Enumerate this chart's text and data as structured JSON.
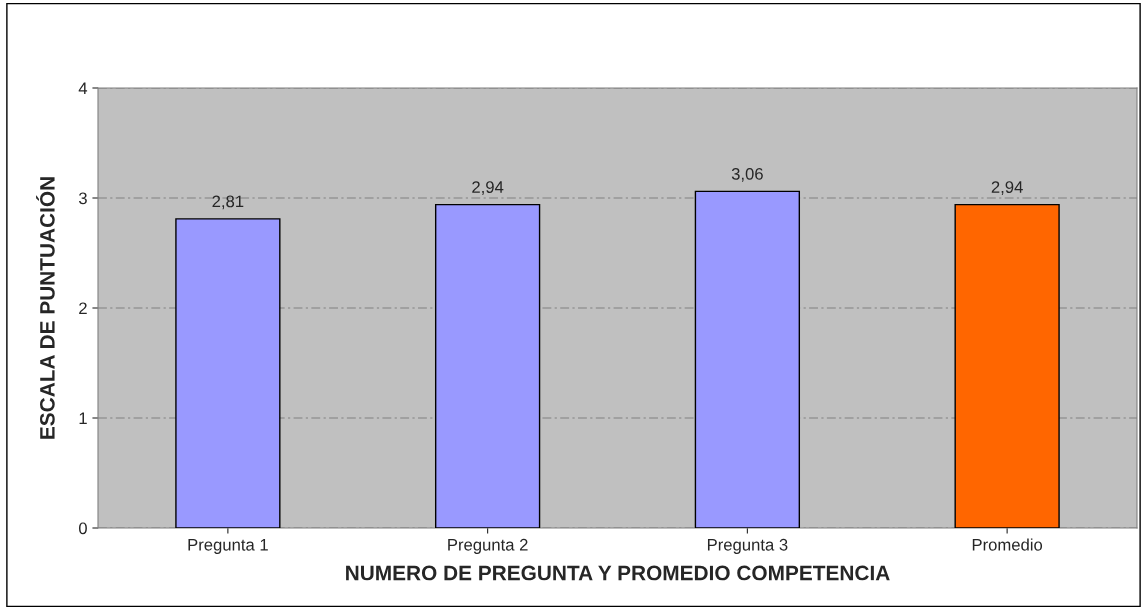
{
  "chart_data": {
    "type": "bar",
    "xlabel": "NUMERO DE PREGUNTA Y PROMEDIO COMPETENCIA",
    "ylabel": "ESCALA DE PUNTUACIÓN",
    "categories": [
      "Pregunta 1",
      "Pregunta 2",
      "Pregunta 3",
      "Promedio"
    ],
    "values": [
      2.81,
      2.94,
      3.06,
      2.94
    ],
    "value_labels": [
      "2,81",
      "2,94",
      "3,06",
      "2,94"
    ],
    "colors": [
      "#9999ff",
      "#9999ff",
      "#9999ff",
      "#ff6600"
    ],
    "ylim": [
      0,
      4
    ],
    "yticks": [
      0,
      1,
      2,
      3,
      4
    ],
    "grid": "y"
  }
}
